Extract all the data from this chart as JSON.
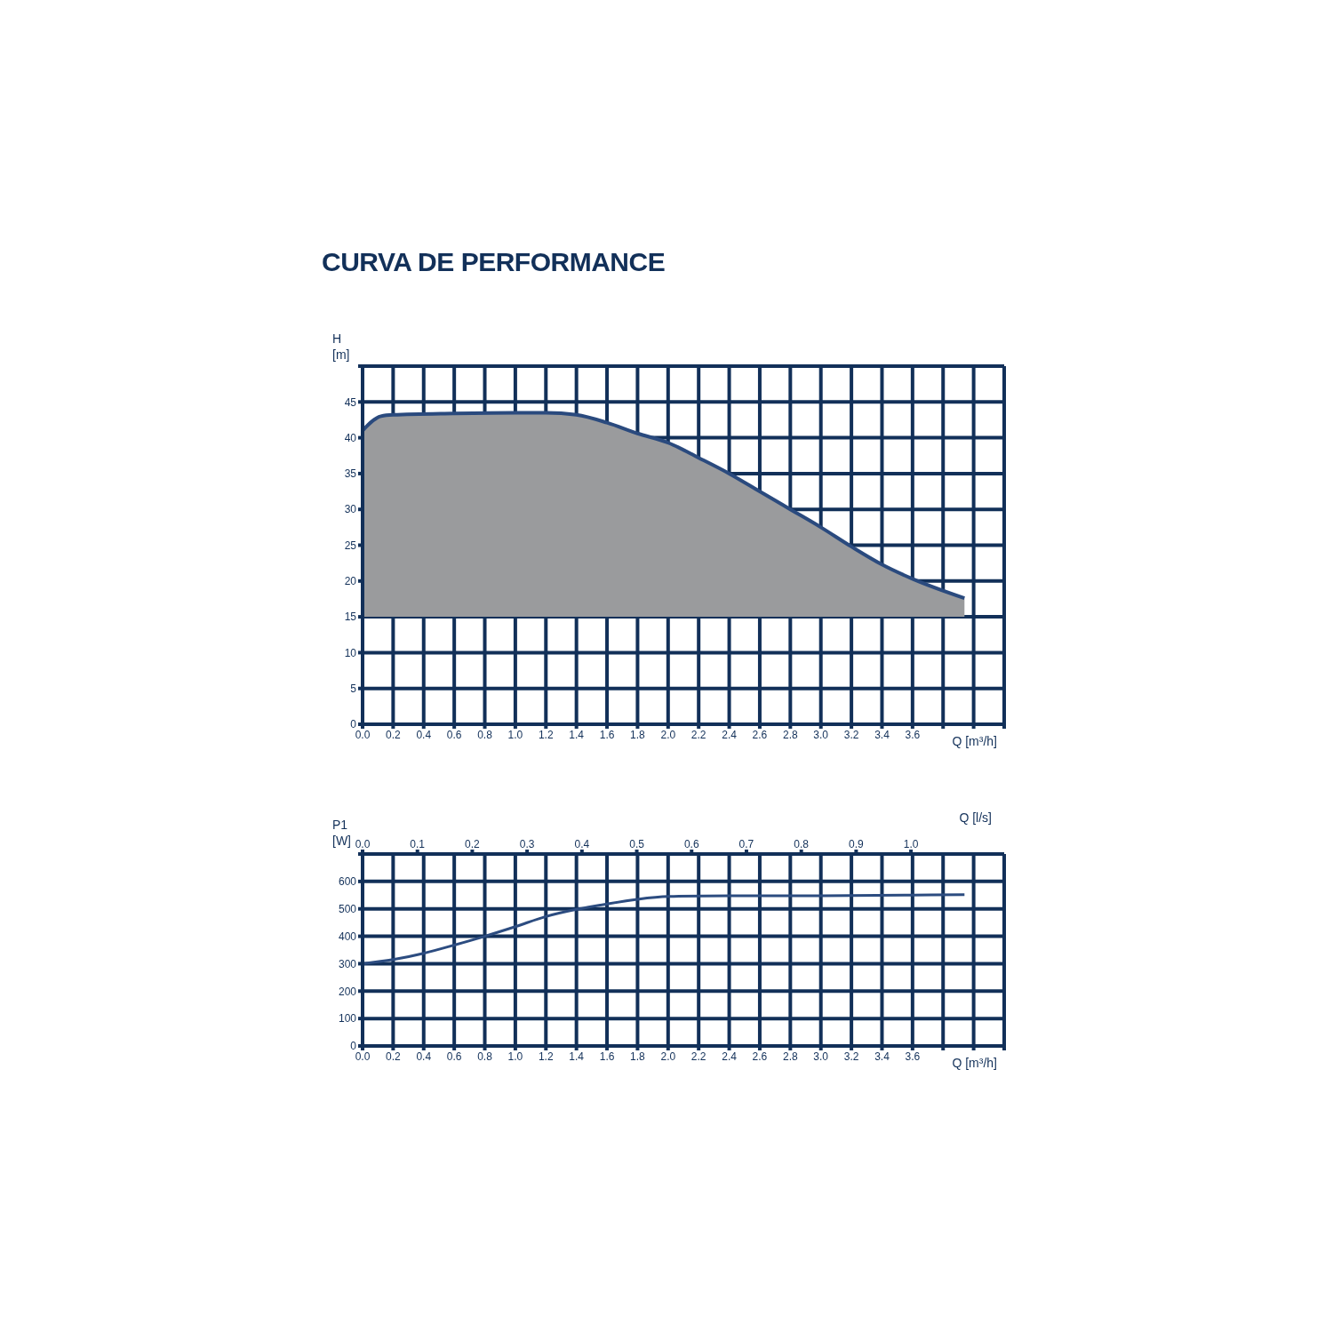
{
  "chart_data": [
    {
      "type": "line",
      "title": "CURVA DE PERFORMANCE",
      "xlabel": "Q [m³/h]",
      "ylabel": "H [m]",
      "x": [
        0,
        0.12,
        0.2,
        0.6,
        1.0,
        1.2,
        1.4,
        1.6,
        1.8,
        2.0,
        2.2,
        2.4,
        2.6,
        2.8,
        3.0,
        3.2,
        3.4,
        3.6,
        3.94
      ],
      "series": [
        {
          "color": "#2a4a7e",
          "values": [
            41,
            43,
            43.2,
            43.4,
            43.5,
            43.5,
            43.2,
            42.1,
            40.6,
            39.3,
            37.2,
            35,
            32.5,
            30,
            27.5,
            24.8,
            22.3,
            20.3,
            17.6
          ],
          "lower": [
            15,
            15,
            15,
            15,
            15,
            15,
            15,
            15,
            15,
            15,
            15,
            15,
            15,
            15,
            15,
            15,
            15,
            15,
            15
          ],
          "upper": [
            41,
            43,
            43.2,
            43.4,
            43.5,
            43.5,
            43.2,
            42.1,
            40.6,
            39.3,
            37.2,
            35,
            32.5,
            30,
            27.5,
            24.8,
            22.3,
            20.3,
            17.6
          ]
        }
      ],
      "xlim": [
        0,
        4.2
      ],
      "xticks": [
        {
          "value": 0,
          "label": "0.0"
        },
        {
          "value": 0.2,
          "label": "0.2"
        },
        {
          "value": 0.4,
          "label": "0.4"
        },
        {
          "value": 0.6,
          "label": "0.6"
        },
        {
          "value": 0.8,
          "label": "0.8"
        },
        {
          "value": 1.0,
          "label": "1.0"
        },
        {
          "value": 1.2,
          "label": "1.2"
        },
        {
          "value": 1.4,
          "label": "1.4"
        },
        {
          "value": 1.6,
          "label": "1.6"
        },
        {
          "value": 1.8,
          "label": "1.8"
        },
        {
          "value": 2.0,
          "label": "2.0"
        },
        {
          "value": 2.2,
          "label": "2.2"
        },
        {
          "value": 2.4,
          "label": "2.4"
        },
        {
          "value": 2.6,
          "label": "2.6"
        },
        {
          "value": 2.8,
          "label": "2.8"
        },
        {
          "value": 3.0,
          "label": "3.0"
        },
        {
          "value": 3.2,
          "label": "3.2"
        },
        {
          "value": 3.4,
          "label": "3.4"
        },
        {
          "value": 3.6,
          "label": "3.6"
        },
        {
          "value": 3.8,
          "label": null
        },
        {
          "value": 4.0,
          "label": null
        },
        {
          "value": 4.2,
          "label": null
        }
      ],
      "ylim": [
        0,
        50
      ],
      "yticks": [
        0,
        5,
        10,
        15,
        20,
        25,
        30,
        35,
        40,
        45,
        {
          "value": 50,
          "label": null
        }
      ],
      "grid": true
    },
    {
      "type": "line",
      "xlabel": "Q [m³/h]",
      "x2label": "Q [l/s]",
      "ylabel": "P1 [W]",
      "x": [
        0,
        0.2,
        0.4,
        0.6,
        0.8,
        1.0,
        1.2,
        1.4,
        1.6,
        1.8,
        2.0,
        2.4,
        3.0,
        3.6,
        3.94
      ],
      "series": [
        {
          "color": "#2c4c80",
          "values": [
            300,
            315,
            338,
            368,
            400,
            435,
            472,
            498,
            518,
            535,
            545,
            548,
            548,
            550,
            552
          ]
        }
      ],
      "xlim": [
        0,
        4.2
      ],
      "xticks": [
        {
          "value": 0,
          "label": "0.0"
        },
        {
          "value": 0.2,
          "label": "0.2"
        },
        {
          "value": 0.4,
          "label": "0.4"
        },
        {
          "value": 0.6,
          "label": "0.6"
        },
        {
          "value": 0.8,
          "label": "0.8"
        },
        {
          "value": 1.0,
          "label": "1.0"
        },
        {
          "value": 1.2,
          "label": "1.2"
        },
        {
          "value": 1.4,
          "label": "1.4"
        },
        {
          "value": 1.6,
          "label": "1.6"
        },
        {
          "value": 1.8,
          "label": "1.8"
        },
        {
          "value": 2.0,
          "label": "2.0"
        },
        {
          "value": 2.2,
          "label": "2.2"
        },
        {
          "value": 2.4,
          "label": "2.4"
        },
        {
          "value": 2.6,
          "label": "2.6"
        },
        {
          "value": 2.8,
          "label": "2.8"
        },
        {
          "value": 3.0,
          "label": "3.0"
        },
        {
          "value": 3.2,
          "label": "3.2"
        },
        {
          "value": 3.4,
          "label": "3.4"
        },
        {
          "value": 3.6,
          "label": "3.6"
        },
        {
          "value": 3.8,
          "label": null
        },
        {
          "value": 4.0,
          "label": null
        },
        {
          "value": 4.2,
          "label": null
        }
      ],
      "x2lim": [
        0,
        1.17
      ],
      "x2ticks": [
        {
          "value": 0,
          "label": "0.0"
        },
        0.1,
        0.2,
        0.3,
        0.4,
        0.5,
        0.6,
        0.7,
        0.8,
        0.9,
        {
          "value": 1.0,
          "label": "1.0"
        }
      ],
      "ylim": [
        0,
        700
      ],
      "yticks": [
        0,
        100,
        200,
        300,
        400,
        500,
        600,
        {
          "value": 700,
          "label": null
        }
      ],
      "grid": true
    }
  ]
}
